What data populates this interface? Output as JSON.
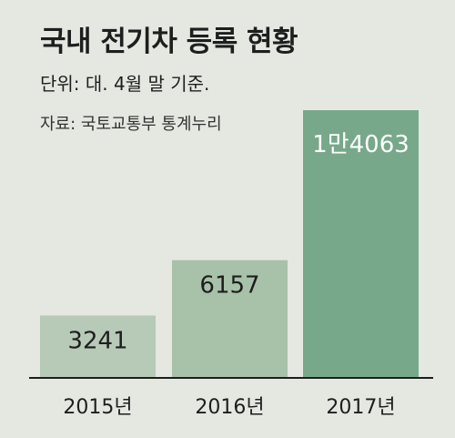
{
  "title": "국내 전기차 등록 현황",
  "unit_note": "단위: 대. 4월 말 기준.",
  "source_note": "자료: 국토교통부 통계누리",
  "colors": {
    "background": "#e4e8e1",
    "bar_2015": "#b7c9b7",
    "bar_2016": "#a8c1a9",
    "bar_2017": "#78a88a",
    "label_dark": "#1e1e1e",
    "label_light": "#ffffff",
    "baseline": "#1e1e1e"
  },
  "chart_data": {
    "type": "bar",
    "categories": [
      "2015년",
      "2016년",
      "2017년"
    ],
    "values": [
      3241,
      6157,
      14063
    ],
    "data_labels": [
      "3241",
      "6157",
      "1만4063"
    ],
    "title": "국내 전기차 등록 현황",
    "xlabel": "",
    "ylabel": "",
    "ylim": [
      0,
      14063
    ],
    "grid": false,
    "legend": "none"
  }
}
